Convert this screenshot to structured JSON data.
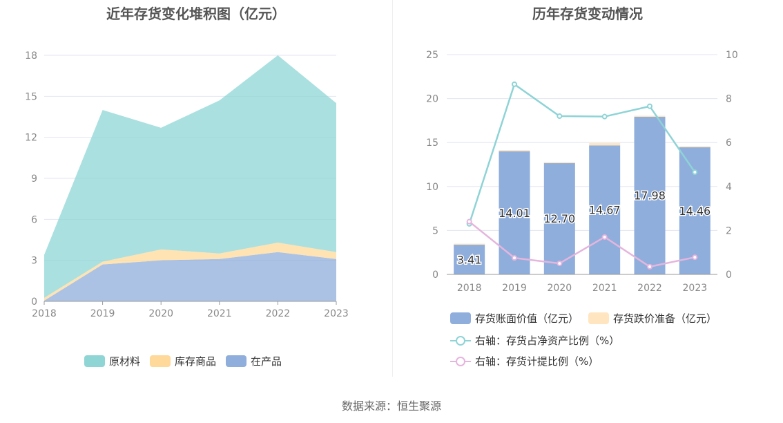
{
  "left_chart": {
    "title": "近年存货变化堆积图（亿元）",
    "legend": [
      {
        "label": "原材料",
        "color": "#8fd5d5"
      },
      {
        "label": "库存商品",
        "color": "#ffd999"
      },
      {
        "label": "在产品",
        "color": "#8faedc"
      }
    ]
  },
  "right_chart": {
    "title": "历年存货变动情况",
    "legend": [
      {
        "label": "存货账面价值（亿元）",
        "color": "#8faedc",
        "kind": "box"
      },
      {
        "label": "存货跌价准备（亿元）",
        "color": "#ffe5c0",
        "kind": "box"
      },
      {
        "label": "右轴：存货占净资产比例（%）",
        "color": "#8ed3d6",
        "kind": "line"
      },
      {
        "label": "右轴：存货计提比例（%）",
        "color": "#e5b5dd",
        "kind": "line"
      }
    ]
  },
  "source": "数据来源：恒生聚源",
  "chart_data": [
    {
      "type": "area",
      "stacked": true,
      "title": "近年存货变化堆积图（亿元）",
      "x": [
        "2018",
        "2019",
        "2020",
        "2021",
        "2022",
        "2023"
      ],
      "yticks": [
        0,
        3,
        6,
        9,
        12,
        15,
        18
      ],
      "ylim": [
        0,
        18
      ],
      "grid": true,
      "legend_position": "bottom",
      "series": [
        {
          "name": "在产品",
          "color": "#8faedc",
          "values": [
            0.05,
            2.7,
            3.0,
            3.1,
            3.6,
            3.1
          ]
        },
        {
          "name": "库存商品",
          "color": "#ffd999",
          "values": [
            0.2,
            0.2,
            0.8,
            0.4,
            0.7,
            0.5
          ]
        },
        {
          "name": "原材料",
          "color": "#8fd5d5",
          "values": [
            3.15,
            11.1,
            8.9,
            11.2,
            13.7,
            10.9
          ]
        }
      ]
    },
    {
      "type": "bar",
      "title": "历年存货变动情况",
      "categories": [
        "2018",
        "2019",
        "2020",
        "2021",
        "2022",
        "2023"
      ],
      "ylim": [
        0,
        25
      ],
      "yticks": [
        0,
        5,
        10,
        15,
        20,
        25
      ],
      "y2lim": [
        0,
        10
      ],
      "y2ticks": [
        0,
        2,
        4,
        6,
        8,
        10
      ],
      "grid": true,
      "legend_position": "bottom",
      "series": [
        {
          "name": "存货账面价值（亿元）",
          "type": "bar",
          "color": "#8faedc",
          "values": [
            3.41,
            14.01,
            12.7,
            14.67,
            17.98,
            14.46
          ],
          "labels": [
            "3.41",
            "14.01",
            "12.70",
            "14.67",
            "17.98",
            "14.46"
          ]
        },
        {
          "name": "存货跌价准备（亿元）",
          "type": "bar",
          "stacked": true,
          "color": "#ffe5c0",
          "values": [
            0.08,
            0.13,
            0.07,
            0.26,
            0.06,
            0.12
          ]
        },
        {
          "name": "右轴：存货占净资产比例（%）",
          "type": "line",
          "axis": "right",
          "color": "#8ed3d6",
          "values": [
            2.3,
            8.65,
            7.2,
            7.18,
            7.65,
            4.65
          ]
        },
        {
          "name": "右轴：存货计提比例（%）",
          "type": "line",
          "axis": "right",
          "color": "#e5b5dd",
          "values": [
            2.4,
            0.75,
            0.5,
            1.7,
            0.35,
            0.78
          ]
        }
      ]
    }
  ]
}
